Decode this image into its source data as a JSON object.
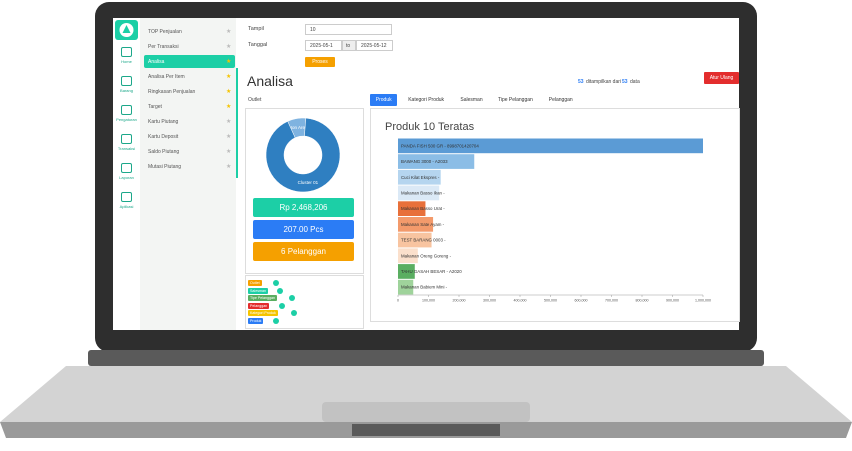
{
  "sidebar": {
    "icons": [
      "Home",
      "Barang",
      "Pengaturan",
      "Transaksi",
      "Laporan",
      "Aplikasi"
    ],
    "menu": [
      "TOP Penjualan",
      "Per Transaksi",
      "Analisa",
      "Analisa Per Item",
      "Ringkasan Penjualan",
      "Target",
      "Kartu Piutang",
      "Kartu Deposit",
      "Saldo Piutang",
      "Mutasi Piutang"
    ]
  },
  "form": {
    "tampil_label": "Tampil",
    "tampil_value": "10",
    "tanggal_label": "Tanggal",
    "date_from": "2025-05-1",
    "to": "to",
    "date_to": "2025-05-12",
    "button": "Proses"
  },
  "header": {
    "title": "Analisa",
    "count_shown": "53",
    "count_text": "ditampilkan dari",
    "count_total": "53",
    "count_unit": "data",
    "reset": "Atur Ulang"
  },
  "outlet_label": "Outlet",
  "tabs": [
    "Produk",
    "Kategori Produk",
    "Salesman",
    "Tipe Pelanggan",
    "Pelanggan"
  ],
  "cards": [
    "Rp 2,468,206",
    "207.00 Pcs",
    "6 Pelanggan"
  ],
  "filters": [
    "Outlet",
    "Salesman",
    "Tipe Pelanggan",
    "Pelanggan",
    "Kategori Produk",
    "Produk"
  ],
  "chart_data": [
    {
      "type": "donut",
      "categories": [
        "Non Area",
        "Cluster 01"
      ],
      "values": [
        8,
        92
      ],
      "colors": [
        "#7fb3e0",
        "#2f7fc1"
      ]
    },
    {
      "type": "bar",
      "title": "Produk 10 Teratas",
      "categories": [
        "PANDA FISH 500 GR - 8998701420704",
        "BAWANG 3000 - A2033",
        "Cuci Kilat Ekspres -",
        "Makanan Basso Ikan -",
        "Makanan Basso Urat -",
        "Makanan Sate Ayam -",
        "TEST BARANG 0003 -",
        "Makanan Oreng Goreng -",
        "TAHU GASAH BESAR - A2020",
        "Makanan Babiem Mini -"
      ],
      "values": [
        1000000,
        250000,
        140000,
        135000,
        90000,
        115000,
        110000,
        65000,
        55000,
        50000
      ],
      "colors": [
        "#5b9bd5",
        "#8bbde6",
        "#b5d5ef",
        "#dbe9f6",
        "#e8703a",
        "#f39a6b",
        "#f8c4a0",
        "#fbe0cc",
        "#5aae61",
        "#9fd39b"
      ],
      "xlim": [
        0,
        1000000
      ],
      "xticks": [
        0,
        {
          "value": 100000,
          "label": "100,000"
        },
        {
          "value": 200000,
          "label": "200,000"
        },
        {
          "value": 300000,
          "label": "300,000"
        },
        {
          "value": 400000,
          "label": "400,000"
        },
        {
          "value": 500000,
          "label": "500,000"
        },
        {
          "value": 600000,
          "label": "600,000"
        },
        {
          "value": 700000,
          "label": "700,000"
        },
        {
          "value": 800000,
          "label": "800,000"
        },
        {
          "value": 900000,
          "label": "900,000"
        },
        {
          "value": 1000000,
          "label": "1,000,000"
        }
      ]
    }
  ]
}
